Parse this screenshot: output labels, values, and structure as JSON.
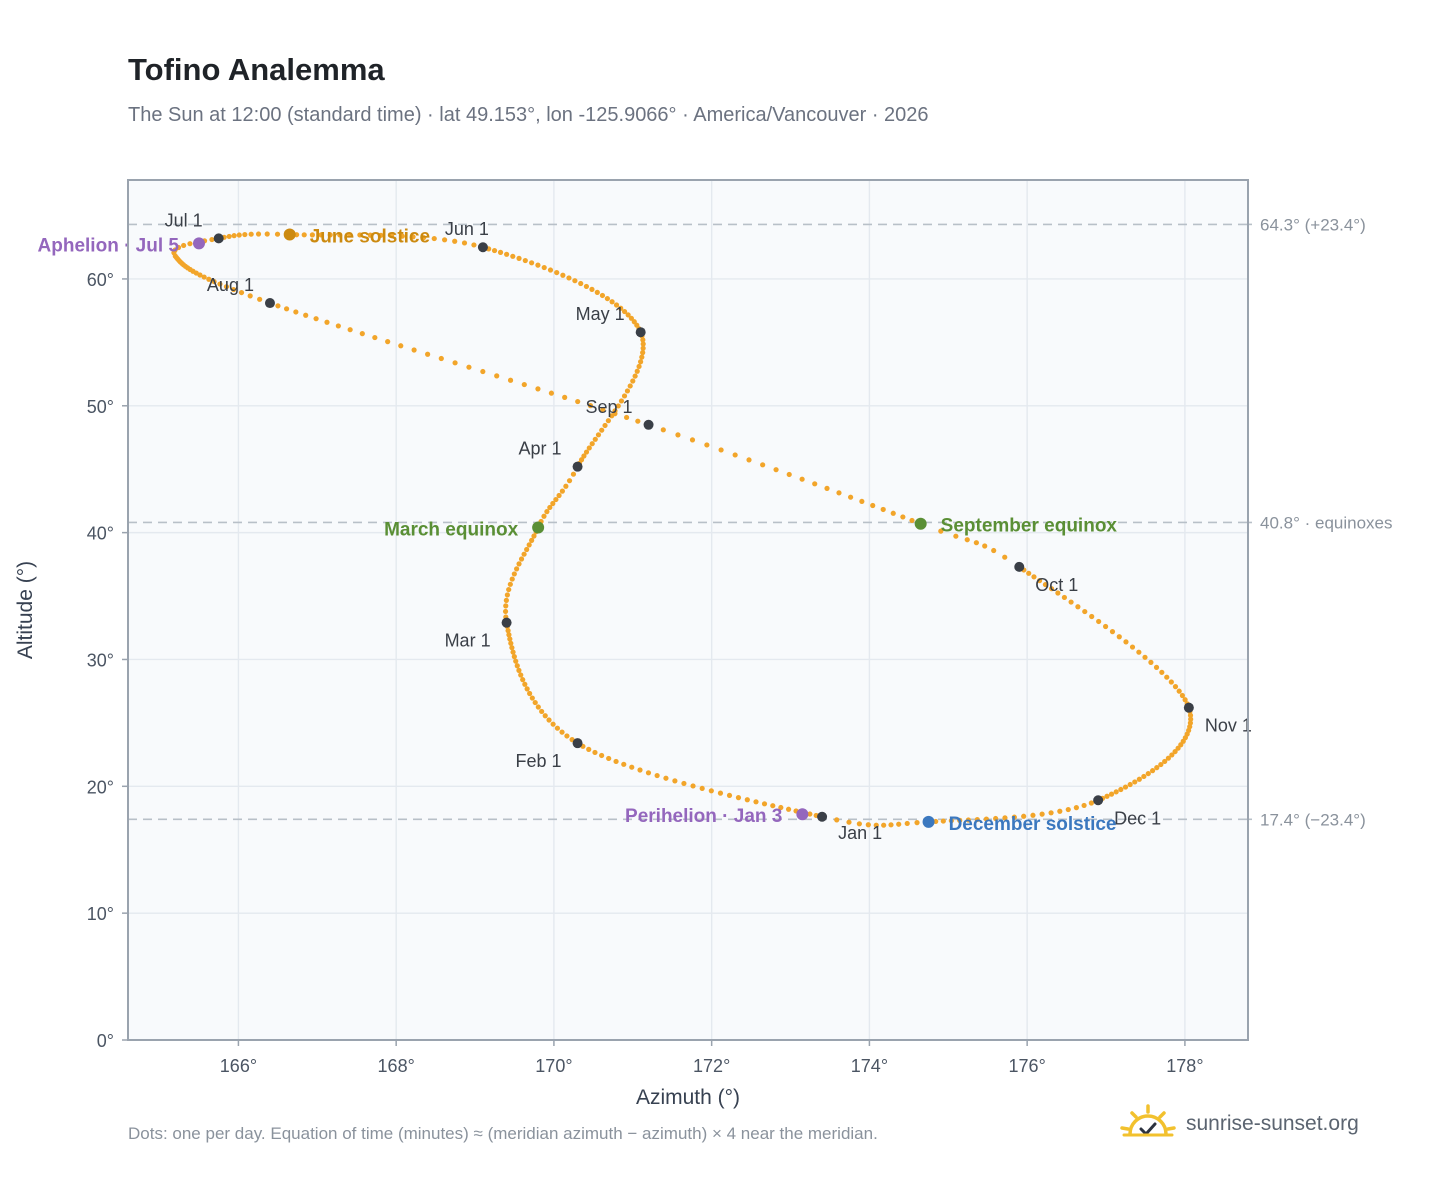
{
  "title": "Tofino Analemma",
  "subtitle": "The Sun at 12:00 (standard time) · lat 49.153°, lon -125.9066° · America/Vancouver · 2026",
  "footnote": "Dots: one per day. Equation of time (minutes) ≈ (meridian azimuth − azimuth) × 4 near the meridian.",
  "brand": {
    "name": "sunrise-sunset.org",
    "icon": "sun-check-icon"
  },
  "colors": {
    "path": "#f2a52a",
    "month_dot": "#3a3f47",
    "solstice_june": "#cc8a10",
    "solstice_december": "#3b78bf",
    "equinox": "#5a8f35",
    "apsis": "#9467bd",
    "reference_line": "#b8c0c8",
    "plot_bg": "#f8fafc",
    "frame": "#9aa3ae"
  },
  "chart_data": {
    "type": "scatter",
    "xlabel": "Azimuth (°)",
    "ylabel": "Altitude (°)",
    "xlim": [
      164.6,
      178.8
    ],
    "ylim": [
      0,
      67.8
    ],
    "xticks": [
      166,
      168,
      170,
      172,
      174,
      176,
      178
    ],
    "yticks": [
      0,
      10,
      20,
      30,
      40,
      50,
      60
    ],
    "grid": true,
    "tick_suffix": "°",
    "months": [
      {
        "label": "Jan 1",
        "x": 173.4,
        "y": 17.6
      },
      {
        "label": "Feb 1",
        "x": 170.3,
        "y": 23.4
      },
      {
        "label": "Mar 1",
        "x": 169.4,
        "y": 32.9
      },
      {
        "label": "Apr 1",
        "x": 170.3,
        "y": 45.2
      },
      {
        "label": "May 1",
        "x": 171.1,
        "y": 55.8
      },
      {
        "label": "Jun 1",
        "x": 169.1,
        "y": 62.5
      },
      {
        "label": "Jul 1",
        "x": 165.75,
        "y": 63.2
      },
      {
        "label": "Aug 1",
        "x": 166.4,
        "y": 58.1
      },
      {
        "label": "Sep 1",
        "x": 171.2,
        "y": 48.5
      },
      {
        "label": "Oct 1",
        "x": 175.9,
        "y": 37.3
      },
      {
        "label": "Nov 1",
        "x": 178.05,
        "y": 26.2
      },
      {
        "label": "Dec 1",
        "x": 176.9,
        "y": 18.9
      }
    ],
    "events": [
      {
        "label": "June solstice",
        "x": 166.65,
        "y": 63.5,
        "kind": "solstice_june"
      },
      {
        "label": "December solstice",
        "x": 174.75,
        "y": 17.2,
        "kind": "solstice_december"
      },
      {
        "label": "March equinox",
        "x": 169.8,
        "y": 40.4,
        "kind": "equinox"
      },
      {
        "label": "September equinox",
        "x": 174.65,
        "y": 40.7,
        "kind": "equinox"
      },
      {
        "label": "Aphelion · Jul 5",
        "x": 165.5,
        "y": 62.8,
        "kind": "apsis"
      },
      {
        "label": "Perihelion · Jan 3",
        "x": 173.15,
        "y": 17.8,
        "kind": "apsis"
      }
    ],
    "reference_lines": [
      {
        "y": 64.3,
        "label": "64.3° (+23.4°)"
      },
      {
        "y": 40.8,
        "label": "40.8° · equinoxes"
      },
      {
        "y": 17.4,
        "label": "17.4° (−23.4°)"
      }
    ],
    "path_anchors": [
      {
        "day": 0,
        "x": 173.4,
        "y": 17.6
      },
      {
        "day": 31,
        "x": 170.3,
        "y": 23.4
      },
      {
        "day": 59,
        "x": 169.4,
        "y": 32.9
      },
      {
        "day": 78,
        "x": 169.8,
        "y": 40.4
      },
      {
        "day": 90,
        "x": 170.3,
        "y": 45.2
      },
      {
        "day": 120,
        "x": 171.1,
        "y": 55.8
      },
      {
        "day": 151,
        "x": 169.1,
        "y": 62.5
      },
      {
        "day": 171,
        "x": 166.65,
        "y": 63.5
      },
      {
        "day": 181,
        "x": 165.75,
        "y": 63.2
      },
      {
        "day": 190,
        "x": 165.2,
        "y": 61.8
      },
      {
        "day": 212,
        "x": 166.4,
        "y": 58.1
      },
      {
        "day": 243,
        "x": 171.2,
        "y": 48.5
      },
      {
        "day": 265,
        "x": 174.65,
        "y": 40.7
      },
      {
        "day": 273,
        "x": 175.9,
        "y": 37.3
      },
      {
        "day": 304,
        "x": 178.05,
        "y": 26.2
      },
      {
        "day": 334,
        "x": 176.9,
        "y": 18.9
      },
      {
        "day": 354,
        "x": 174.75,
        "y": 17.2
      },
      {
        "day": 365,
        "x": 173.4,
        "y": 17.6
      }
    ]
  }
}
